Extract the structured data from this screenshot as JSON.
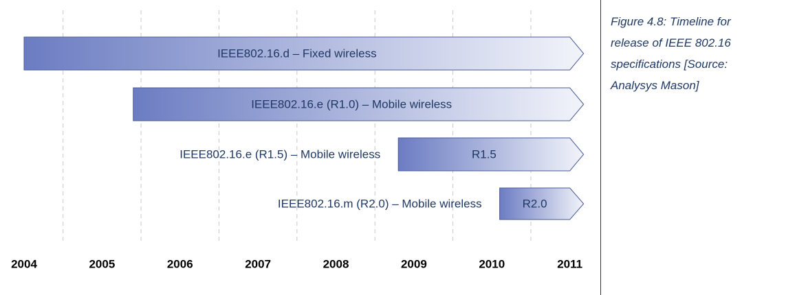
{
  "chart_data": {
    "type": "timeline",
    "caption_lines": [
      "Figure 4.8: Timeline for",
      "release of IEEE 802.16",
      "specifications [Source:",
      "Analysys Mason]"
    ],
    "xlim": [
      2003.7,
      2011.4
    ],
    "xticks": [
      2004,
      2005,
      2006,
      2007,
      2008,
      2009,
      2010,
      2011
    ],
    "grid": [
      2004.5,
      2005.5,
      2006.5,
      2007.5,
      2008.5,
      2009.5,
      2010.5
    ],
    "color": "#6b7cc2",
    "bars": [
      {
        "label": "IEEE802.16.d – Fixed wireless",
        "start": 2004,
        "end": 2011
      },
      {
        "label": "IEEE802.16.e (R1.0) – Mobile wireless",
        "start": 2005.4,
        "end": 2011
      },
      {
        "caption": "IEEE802.16.e (R1.5) – Mobile wireless",
        "label": "R1.5",
        "start": 2008.8,
        "end": 2011
      },
      {
        "caption": "IEEE802.16.m (R2.0) – Mobile wireless",
        "label": "R2.0",
        "start": 2010.1,
        "end": 2011
      }
    ]
  }
}
